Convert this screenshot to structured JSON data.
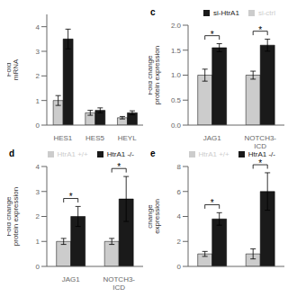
{
  "chart_data": [
    {
      "type": "bar",
      "categories": [
        "HES1",
        "HES5",
        "HEYL"
      ],
      "ylabel": "Fold\nmRNA",
      "series": [
        {
          "color": "#cccccc",
          "values": [
            1.0,
            0.5,
            0.3
          ],
          "errors": [
            0.2,
            0.1,
            0.05
          ]
        },
        {
          "color": "#1a1a1a",
          "values": [
            3.5,
            0.6,
            0.5
          ],
          "errors": [
            0.4,
            0.1,
            0.08
          ]
        }
      ],
      "ylim": [
        0,
        4.5
      ],
      "yticks": [
        0,
        1,
        2,
        3,
        4
      ]
    },
    {
      "type": "bar",
      "title": "c",
      "categories": [
        "JAG1",
        "NOTCH3-\nICD"
      ],
      "ylabel": "Fold change\nprotein expression",
      "series": [
        {
          "name": "si-ctrl",
          "color": "#cccccc",
          "values": [
            1.0,
            1.0
          ],
          "errors": [
            0.12,
            0.08
          ]
        },
        {
          "name": "si-HtrA1",
          "color": "#1a1a1a",
          "values": [
            1.55,
            1.6
          ],
          "errors": [
            0.08,
            0.12
          ]
        }
      ],
      "ylim": [
        0,
        2.0
      ],
      "yticks": [
        {
          "value": 0.0,
          "label": "0.0"
        },
        {
          "value": 0.5,
          "label": "0.5"
        },
        {
          "value": 1.0,
          "label": "1.0"
        },
        {
          "value": 1.5,
          "label": "1.5"
        },
        {
          "value": 2.0,
          "label": "2.0"
        }
      ],
      "legend": "upper right",
      "annotations": [
        "*",
        "*"
      ]
    },
    {
      "type": "bar",
      "title": "d",
      "categories": [
        "JAG1",
        "NOTCH3-\nICD"
      ],
      "ylabel": "Fold change\nprotein expression",
      "series": [
        {
          "name": "HtrA1 +/+",
          "color": "#cccccc",
          "values": [
            1.0,
            1.0
          ],
          "errors": [
            0.12,
            0.12
          ]
        },
        {
          "name": "HtrA1 -/-",
          "color": "#1a1a1a",
          "values": [
            2.0,
            2.7
          ],
          "errors": [
            0.4,
            0.9
          ]
        }
      ],
      "ylim": [
        0,
        4.0
      ],
      "yticks": [
        0,
        1,
        2,
        3,
        4
      ],
      "legend": "upper right",
      "annotations": [
        "*",
        "*"
      ]
    },
    {
      "type": "bar",
      "title": "e",
      "categories": [
        null,
        null
      ],
      "ylabel": "change\nexpression",
      "series": [
        {
          "name": "HtrA1 +/+",
          "color": "#cccccc",
          "values": [
            1.0,
            1.0
          ],
          "errors": [
            0.2,
            0.4
          ]
        },
        {
          "name": "HtrA1 -/-",
          "color": "#1a1a1a",
          "values": [
            3.8,
            6.0
          ],
          "errors": [
            0.5,
            1.5
          ]
        }
      ],
      "ylim": [
        0,
        8
      ],
      "yticks": [
        0,
        2,
        4,
        6,
        8
      ],
      "legend": "upper right",
      "annotations": [
        "*",
        "*"
      ]
    }
  ]
}
